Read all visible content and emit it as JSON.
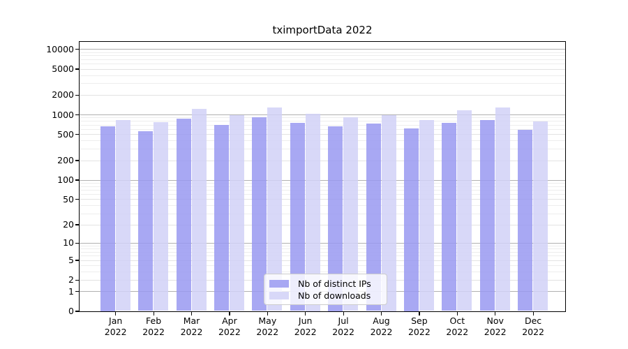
{
  "title": "tximportData 2022",
  "chart_data": {
    "type": "bar",
    "title": "tximportData 2022",
    "categories": [
      "Jan 2022",
      "Feb 2022",
      "Mar 2022",
      "Apr 2022",
      "May 2022",
      "Jun 2022",
      "Jul 2022",
      "Aug 2022",
      "Sep 2022",
      "Oct 2022",
      "Nov 2022",
      "Dec 2022"
    ],
    "series": [
      {
        "name": "Nb of distinct IPs",
        "color": "#a8a8f3",
        "values": [
          660,
          560,
          860,
          690,
          900,
          740,
          660,
          720,
          620,
          740,
          820,
          580
        ]
      },
      {
        "name": "Nb of downloads",
        "color": "#d8d8f8",
        "values": [
          830,
          770,
          1230,
          980,
          1270,
          1040,
          900,
          990,
          830,
          1150,
          1290,
          780
        ]
      }
    ],
    "xlabel": "",
    "ylabel": "",
    "yscale": "log10(1+x)",
    "yticks": [
      0,
      1,
      2,
      5,
      10,
      20,
      50,
      100,
      200,
      500,
      1000,
      2000,
      5000,
      10000
    ],
    "ylim": [
      0,
      12800
    ],
    "grid": "horizontal",
    "legend_position": "inside-bottom-center"
  },
  "colors": {
    "bar_ips": "rgba(153,153,241,0.85)",
    "bar_downloads": "rgba(209,209,247,0.85)",
    "swatch_ips": "#a8a8f3",
    "swatch_downloads": "#d8d8f8",
    "grid_major": "#b0b0b0",
    "grid_minor": "#e2e2e2",
    "spine": "#000000"
  }
}
